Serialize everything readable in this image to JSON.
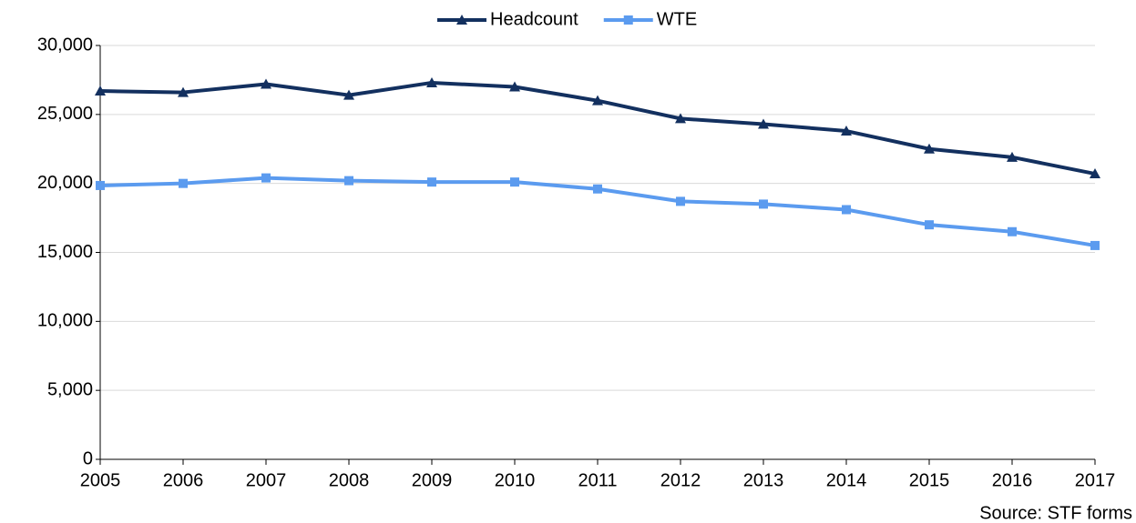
{
  "chart_data": {
    "type": "line",
    "x": [
      2005,
      2006,
      2007,
      2008,
      2009,
      2010,
      2011,
      2012,
      2013,
      2014,
      2015,
      2016,
      2017
    ],
    "xlim": [
      2005,
      2017
    ],
    "xticks": [
      2005,
      2006,
      2007,
      2008,
      2009,
      2010,
      2011,
      2012,
      2013,
      2014,
      2015,
      2016,
      2017
    ],
    "series": [
      {
        "name": "Headcount",
        "color": "#13305f",
        "marker": "triangle",
        "values": [
          26700,
          26600,
          27200,
          26400,
          27300,
          27000,
          26000,
          24700,
          24300,
          23800,
          22500,
          21900,
          20700
        ]
      },
      {
        "name": "WTE",
        "color": "#5b9bef",
        "marker": "square",
        "values": [
          19850,
          20000,
          20400,
          20200,
          20100,
          20100,
          19600,
          18700,
          18500,
          18100,
          17000,
          16500,
          15500
        ]
      }
    ],
    "ylim": [
      0,
      30000
    ],
    "yticks": [
      0,
      {
        "value": 5000,
        "label": "5,000"
      },
      {
        "value": 10000,
        "label": "10,000"
      },
      {
        "value": 15000,
        "label": "15,000"
      },
      {
        "value": 20000,
        "label": "20,000"
      },
      {
        "value": 25000,
        "label": "25,000"
      },
      {
        "value": 30000,
        "label": "30,000"
      }
    ],
    "grid": true,
    "legend": "top",
    "source": "Source: STF forms"
  }
}
